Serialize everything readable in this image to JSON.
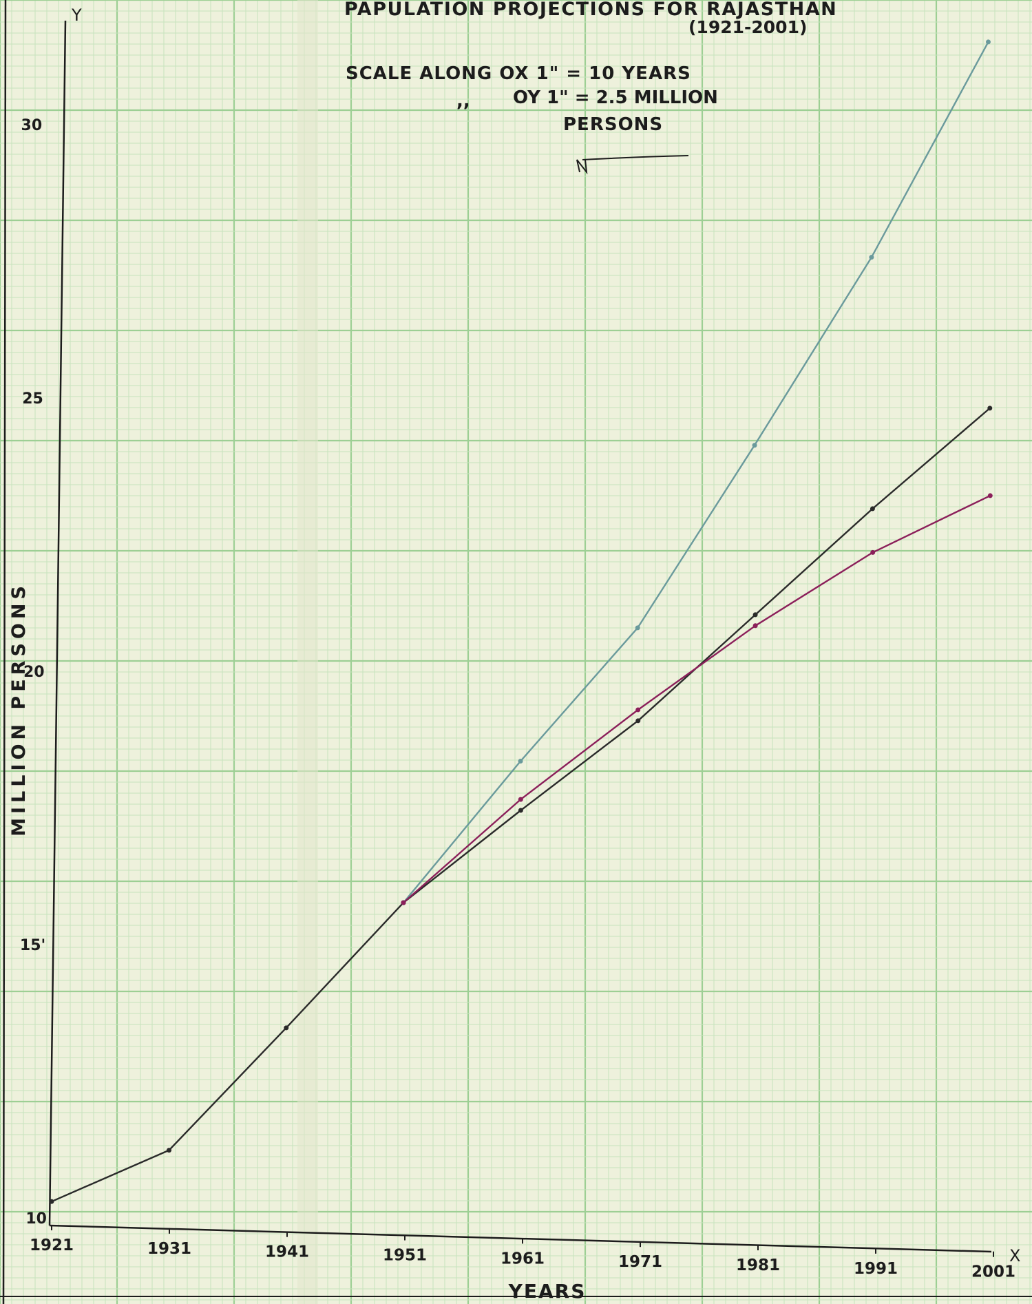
{
  "chart_data": {
    "type": "line",
    "title": "PAPULATION PROJECTIONS FOR RAJASTHAN",
    "subtitle": "(1921-2001)",
    "scale_note": {
      "line1": "SCALE ALONG OX 1\" = 10 YEARS",
      "line2_mark": ",,",
      "line2": "OY 1\" = 2.5 MILLION",
      "line3": "PERSONS"
    },
    "xlabel": "YEARS",
    "ylabel": "MILLION PERSONS",
    "x_axis_letter": "X",
    "y_axis_letter": "Y",
    "x": [
      1921,
      1931,
      1941,
      1951,
      1961,
      1971,
      1981,
      1991,
      2001
    ],
    "x_tick_labels": [
      "1921",
      "1931",
      "1941",
      "1951",
      "1961",
      "1971",
      "1981",
      "1991",
      "2001"
    ],
    "y_ticks": [
      10,
      15,
      20,
      25,
      30
    ],
    "y_tick_labels": [
      "10",
      "15'",
      "20",
      "25",
      "30"
    ],
    "xlim": [
      1921,
      2001
    ],
    "ylim": [
      10,
      32.5
    ],
    "grid": true,
    "series": [
      {
        "color": "#6a9a9c",
        "x": [
          1951,
          1961,
          1971,
          1981,
          1991,
          2001
        ],
        "values": [
          15.95,
          18.6,
          21.1,
          24.5,
          28.0,
          32.0
        ]
      },
      {
        "color": "#2a2a2a",
        "x": [
          1921,
          1931,
          1941,
          1951,
          1961,
          1971,
          1981,
          1991,
          2001
        ],
        "values": [
          10.3,
          11.3,
          13.6,
          15.95,
          17.7,
          19.4,
          21.4,
          23.4,
          25.3
        ]
      },
      {
        "color": "#8b1f5a",
        "x": [
          1951,
          1961,
          1971,
          1981,
          1991,
          2001
        ],
        "values": [
          15.95,
          17.9,
          19.6,
          21.2,
          22.6,
          23.7
        ]
      }
    ]
  }
}
